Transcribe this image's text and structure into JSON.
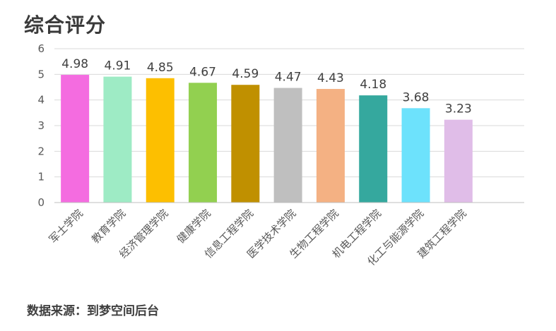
{
  "title": "综合评分",
  "source": "数据来源：到梦空间后台",
  "chart_data": {
    "type": "bar",
    "title": "综合评分",
    "xlabel": "",
    "ylabel": "",
    "ylim": [
      0,
      6
    ],
    "yticks": [
      0,
      1,
      2,
      3,
      4,
      5,
      6
    ],
    "grid": true,
    "legend": "none",
    "categories": [
      "军士学院",
      "教育学院",
      "经济管理学院",
      "健康学院",
      "信息工程学院",
      "医学技术学院",
      "生物工程学院",
      "机电工程学院",
      "化工与能源学院",
      "建筑工程学院"
    ],
    "values": [
      4.98,
      4.91,
      4.85,
      4.67,
      4.59,
      4.47,
      4.43,
      4.18,
      3.68,
      3.23
    ],
    "value_labels": [
      "4.98",
      "4.91",
      "4.85",
      "4.67",
      "4.59",
      "4.47",
      "4.43",
      "4.18",
      "3.68",
      "3.23"
    ],
    "colors": [
      "#F46CE0",
      "#9EEBC5",
      "#FDBF00",
      "#92D050",
      "#C09000",
      "#BFBFBF",
      "#F4B183",
      "#35A89E",
      "#6DE2FC",
      "#E0BDE8"
    ],
    "grid_color": "#D9D9D9",
    "axis_color": "#BFBFBF"
  }
}
